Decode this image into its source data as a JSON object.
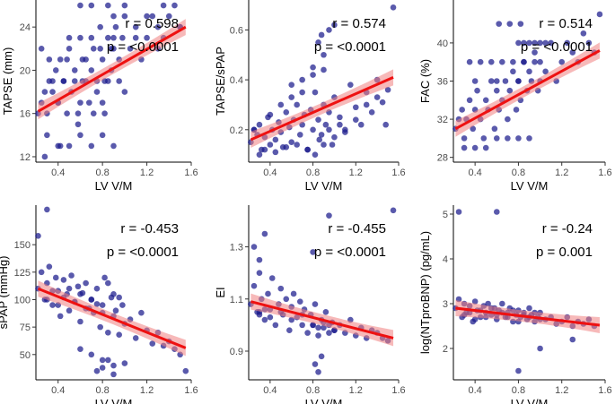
{
  "chart_data": [
    {
      "type": "scatter",
      "title": "",
      "xlabel": "LV V/M",
      "ylabel": "TAPSE (mm)",
      "xlim": [
        0.2,
        1.6
      ],
      "ylim": [
        11.5,
        26.5
      ],
      "xticks": [
        "0.4",
        "0.8",
        "1.2",
        "1.6"
      ],
      "yticks": [
        "12",
        "16",
        "20",
        "24"
      ],
      "fit": {
        "x": [
          0.22,
          1.55
        ],
        "y": [
          16.2,
          24.0
        ]
      },
      "stats": {
        "r": "r = 0.598",
        "p": "p = <0.0001"
      },
      "x": [
        0.22,
        0.25,
        0.28,
        0.3,
        0.32,
        0.35,
        0.38,
        0.4,
        0.42,
        0.45,
        0.48,
        0.5,
        0.52,
        0.55,
        0.58,
        0.6,
        0.62,
        0.65,
        0.68,
        0.7,
        0.72,
        0.75,
        0.78,
        0.8,
        0.82,
        0.85,
        0.88,
        0.9,
        0.92,
        0.95,
        0.98,
        1.0,
        1.05,
        1.1,
        1.15,
        1.2,
        1.25,
        1.3,
        1.35,
        1.4,
        1.45,
        1.5,
        0.3,
        0.4,
        0.5,
        0.6,
        0.7,
        0.8,
        0.9,
        0.35,
        0.45,
        0.55,
        0.65,
        0.75,
        0.85,
        0.95,
        0.4,
        0.6,
        0.8,
        1.0,
        0.25,
        0.5,
        0.7,
        0.9,
        1.1,
        1.3,
        0.32,
        0.48,
        0.62,
        0.78,
        0.88,
        0.6,
        0.7,
        0.85,
        0.9,
        1.0,
        0.28,
        0.42,
        0.58,
        0.72,
        0.82,
        1.2,
        1.35,
        1.5
      ],
      "y": [
        16,
        17,
        18,
        16,
        19,
        18,
        20,
        17,
        21,
        19,
        16,
        22,
        18,
        20,
        15,
        23,
        19,
        21,
        17,
        20,
        22,
        18,
        24,
        21,
        19,
        23,
        20,
        22,
        24,
        21,
        23,
        25,
        22,
        24,
        21,
        23,
        25,
        24,
        23,
        25,
        26,
        24,
        14,
        13,
        13,
        14,
        13,
        14,
        13,
        19,
        19,
        19,
        19,
        19,
        19,
        19,
        17,
        17,
        17,
        18,
        22,
        23,
        23,
        23,
        23,
        22,
        21,
        21,
        21,
        22,
        22,
        26,
        26,
        26,
        25,
        26,
        12,
        13,
        16,
        16,
        16,
        25,
        26,
        24
      ]
    },
    {
      "type": "scatter",
      "title": "",
      "xlabel": "LV V/M",
      "ylabel": "TAPSE/sPAP",
      "xlim": [
        0.2,
        1.6
      ],
      "ylim": [
        0.07,
        0.72
      ],
      "xticks": [
        "0.4",
        "0.8",
        "1.2",
        "1.6"
      ],
      "yticks": [
        "0.2",
        "0.4",
        "0.6"
      ],
      "fit": {
        "x": [
          0.22,
          1.55
        ],
        "y": [
          0.16,
          0.41
        ]
      },
      "stats": {
        "r": "r = 0.574",
        "p": "p = <0.0001"
      },
      "x": [
        0.22,
        0.25,
        0.28,
        0.3,
        0.32,
        0.35,
        0.38,
        0.4,
        0.42,
        0.45,
        0.48,
        0.5,
        0.52,
        0.55,
        0.58,
        0.6,
        0.62,
        0.65,
        0.68,
        0.7,
        0.72,
        0.75,
        0.78,
        0.8,
        0.82,
        0.85,
        0.88,
        0.9,
        0.92,
        0.95,
        0.98,
        1.0,
        1.05,
        1.1,
        1.15,
        1.2,
        1.25,
        1.3,
        1.35,
        1.4,
        1.45,
        1.5,
        0.3,
        0.35,
        0.45,
        0.55,
        0.65,
        0.75,
        0.82,
        0.86,
        0.9,
        0.95,
        1.0,
        1.05,
        1.1,
        1.2,
        1.3,
        1.4,
        0.25,
        0.4,
        0.5,
        0.6,
        0.7,
        0.8,
        0.9,
        0.85,
        0.88,
        0.9,
        0.95,
        1.0,
        0.6,
        0.7,
        0.8,
        1.48,
        1.55
      ],
      "y": [
        0.15,
        0.2,
        0.18,
        0.22,
        0.12,
        0.17,
        0.25,
        0.14,
        0.2,
        0.16,
        0.23,
        0.19,
        0.13,
        0.27,
        0.21,
        0.15,
        0.24,
        0.3,
        0.18,
        0.22,
        0.26,
        0.12,
        0.28,
        0.2,
        0.35,
        0.24,
        0.18,
        0.3,
        0.22,
        0.27,
        0.14,
        0.33,
        0.25,
        0.2,
        0.38,
        0.29,
        0.22,
        0.35,
        0.27,
        0.4,
        0.31,
        0.36,
        0.1,
        0.12,
        0.11,
        0.13,
        0.14,
        0.12,
        0.1,
        0.16,
        0.14,
        0.2,
        0.17,
        0.22,
        0.19,
        0.24,
        0.3,
        0.33,
        0.2,
        0.26,
        0.3,
        0.33,
        0.35,
        0.42,
        0.44,
        0.55,
        0.58,
        0.5,
        0.6,
        0.62,
        0.38,
        0.4,
        0.45,
        0.22,
        0.69
      ]
    },
    {
      "type": "scatter",
      "title": "",
      "xlabel": "LV V/M",
      "ylabel": "FAC (%)",
      "xlim": [
        0.2,
        1.6
      ],
      "ylim": [
        27.5,
        44.5
      ],
      "xticks": [
        "0.4",
        "0.8",
        "1.2",
        "1.6"
      ],
      "yticks": [
        "28",
        "32",
        "36",
        "40"
      ],
      "fit": {
        "x": [
          0.22,
          1.55
        ],
        "y": [
          31.0,
          39.2
        ]
      },
      "stats": {
        "r": "r = 0.514",
        "p": "p = <0.0001"
      },
      "x": [
        0.22,
        0.25,
        0.28,
        0.3,
        0.32,
        0.35,
        0.38,
        0.4,
        0.42,
        0.45,
        0.48,
        0.5,
        0.52,
        0.55,
        0.58,
        0.6,
        0.62,
        0.65,
        0.68,
        0.7,
        0.72,
        0.75,
        0.78,
        0.8,
        0.82,
        0.85,
        0.88,
        0.9,
        0.92,
        0.95,
        0.98,
        1.0,
        1.05,
        1.1,
        1.15,
        1.2,
        1.25,
        1.3,
        1.35,
        1.4,
        1.45,
        1.5,
        0.3,
        0.4,
        0.5,
        0.6,
        0.7,
        0.8,
        0.9,
        0.35,
        0.45,
        0.55,
        0.65,
        0.75,
        0.85,
        0.95,
        0.4,
        0.6,
        0.8,
        1.0,
        0.8,
        0.85,
        0.9,
        0.95,
        1.0,
        1.05,
        0.62,
        0.72,
        0.82,
        1.55
      ],
      "y": [
        31,
        32,
        33,
        30,
        32,
        34,
        31,
        33,
        35,
        32,
        30,
        34,
        33,
        36,
        31,
        35,
        33,
        34,
        36,
        32,
        35,
        37,
        33,
        36,
        34,
        38,
        35,
        37,
        36,
        39,
        35,
        38,
        37,
        40,
        36,
        38,
        40,
        39,
        38,
        41,
        40,
        39,
        29,
        29,
        29,
        30,
        30,
        30,
        30,
        38,
        38,
        38,
        38,
        38,
        38,
        38,
        36,
        36,
        36,
        36,
        40,
        40,
        40,
        40,
        40,
        40,
        42,
        42,
        42,
        43
      ]
    },
    {
      "type": "scatter",
      "title": "",
      "xlabel": "LV V/M",
      "ylabel": "sPAP (mmHg)",
      "xlim": [
        0.2,
        1.6
      ],
      "ylim": [
        27,
        186
      ],
      "xticks": [
        "0.4",
        "0.8",
        "1.2",
        "1.6"
      ],
      "yticks": [
        "50",
        "75",
        "100",
        "125",
        "150"
      ],
      "fit": {
        "x": [
          0.22,
          1.55
        ],
        "y": [
          110,
          56
        ]
      },
      "stats": {
        "r": "r = -0.453",
        "p": "p = <0.0001"
      },
      "x": [
        0.22,
        0.25,
        0.28,
        0.3,
        0.32,
        0.35,
        0.38,
        0.4,
        0.42,
        0.45,
        0.48,
        0.5,
        0.52,
        0.55,
        0.58,
        0.6,
        0.62,
        0.65,
        0.68,
        0.7,
        0.72,
        0.75,
        0.78,
        0.8,
        0.82,
        0.85,
        0.88,
        0.9,
        0.92,
        0.95,
        0.98,
        1.0,
        1.05,
        1.1,
        1.15,
        1.2,
        1.25,
        1.3,
        1.35,
        1.4,
        1.45,
        1.5,
        0.3,
        0.35,
        0.4,
        0.45,
        0.5,
        0.55,
        0.6,
        0.65,
        0.7,
        0.75,
        0.8,
        0.85,
        0.9,
        0.95,
        0.6,
        0.7,
        0.8,
        0.9,
        1.0,
        0.75,
        0.8,
        0.85,
        0.9,
        0.3,
        0.22,
        1.55
      ],
      "y": [
        110,
        125,
        100,
        115,
        130,
        95,
        120,
        108,
        85,
        118,
        105,
        90,
        122,
        98,
        112,
        80,
        106,
        115,
        92,
        100,
        88,
        110,
        75,
        95,
        120,
        70,
        102,
        85,
        90,
        68,
        95,
        78,
        82,
        65,
        88,
        72,
        60,
        70,
        58,
        62,
        55,
        50,
        100,
        108,
        95,
        102,
        110,
        98,
        105,
        92,
        100,
        96,
        88,
        115,
        105,
        102,
        55,
        50,
        45,
        40,
        42,
        35,
        38,
        45,
        32,
        182,
        158,
        35
      ]
    },
    {
      "type": "scatter",
      "title": "",
      "xlabel": "LV V/M",
      "ylabel": "EI",
      "xlim": [
        0.2,
        1.6
      ],
      "ylim": [
        0.79,
        1.46
      ],
      "xticks": [
        "0.4",
        "0.8",
        "1.2",
        "1.6"
      ],
      "yticks": [
        "0.9",
        "1.1",
        "1.3"
      ],
      "fit": {
        "x": [
          0.22,
          1.55
        ],
        "y": [
          1.09,
          0.95
        ]
      },
      "stats": {
        "r": "r = -0.455",
        "p": "p = <0.0001"
      },
      "x": [
        0.22,
        0.25,
        0.28,
        0.3,
        0.32,
        0.35,
        0.38,
        0.4,
        0.42,
        0.45,
        0.48,
        0.5,
        0.52,
        0.55,
        0.58,
        0.6,
        0.62,
        0.65,
        0.68,
        0.7,
        0.72,
        0.75,
        0.78,
        0.8,
        0.82,
        0.85,
        0.88,
        0.9,
        0.92,
        0.95,
        0.98,
        1.0,
        1.05,
        1.1,
        1.15,
        1.2,
        1.25,
        1.3,
        1.35,
        1.4,
        1.45,
        1.5,
        0.3,
        0.35,
        0.4,
        0.5,
        0.6,
        0.7,
        0.8,
        0.85,
        0.9,
        0.95,
        1.0,
        0.25,
        0.3,
        0.35,
        0.82,
        0.88,
        0.8,
        0.95,
        0.3,
        0.85,
        1.55
      ],
      "y": [
        1.08,
        1.15,
        1.05,
        1.2,
        1.1,
        1.02,
        1.12,
        1.06,
        1.18,
        1.0,
        1.08,
        1.14,
        1.04,
        1.1,
        0.98,
        1.07,
        1.12,
        1.03,
        1.09,
        1.0,
        1.06,
        0.97,
        1.04,
        1.0,
        1.08,
        0.96,
        1.02,
        0.99,
        1.05,
        0.97,
        1.01,
        0.98,
        1.0,
        0.97,
        1.02,
        0.96,
        0.99,
        0.95,
        0.98,
        0.97,
        0.95,
        0.94,
        1.04,
        1.06,
        1.03,
        1.05,
        1.02,
        1.04,
        1.0,
        0.99,
        1.01,
        1.0,
        0.98,
        1.3,
        1.25,
        1.35,
        0.85,
        0.88,
        1.28,
        1.42,
        1.05,
        0.82,
        1.44
      ]
    },
    {
      "type": "scatter",
      "title": "",
      "xlabel": "LV V/M",
      "ylabel": "log(NTproBNP) (pg/mL)",
      "xlim": [
        0.2,
        1.6
      ],
      "ylim": [
        1.3,
        5.2
      ],
      "xticks": [
        "0.4",
        "0.8",
        "1.2",
        "1.6"
      ],
      "yticks": [
        "2",
        "3",
        "4",
        "5"
      ],
      "fit": {
        "x": [
          0.22,
          1.55
        ],
        "y": [
          2.9,
          2.52
        ]
      },
      "stats": {
        "r": "r = -0.24",
        "p": "p = 0.001"
      },
      "x": [
        0.22,
        0.25,
        0.28,
        0.3,
        0.32,
        0.35,
        0.38,
        0.4,
        0.42,
        0.45,
        0.48,
        0.5,
        0.52,
        0.55,
        0.58,
        0.6,
        0.62,
        0.65,
        0.68,
        0.7,
        0.72,
        0.75,
        0.78,
        0.8,
        0.82,
        0.85,
        0.88,
        0.9,
        0.92,
        0.95,
        0.98,
        1.0,
        1.05,
        1.1,
        1.15,
        1.2,
        1.25,
        1.3,
        1.35,
        1.4,
        1.45,
        1.5,
        0.3,
        0.35,
        0.4,
        0.45,
        0.5,
        0.55,
        0.6,
        0.65,
        0.7,
        0.75,
        0.8,
        0.85,
        0.9,
        0.95,
        1.0,
        0.25,
        0.6,
        0.8,
        1.0,
        1.3
      ],
      "y": [
        2.9,
        3.1,
        2.7,
        3.0,
        2.8,
        2.95,
        2.6,
        3.05,
        2.85,
        2.7,
        2.95,
        2.8,
        3.0,
        2.75,
        2.9,
        2.65,
        2.85,
        3.0,
        2.7,
        2.8,
        2.9,
        2.6,
        2.75,
        2.85,
        2.7,
        2.8,
        2.65,
        2.9,
        2.75,
        2.6,
        2.7,
        2.8,
        2.65,
        2.7,
        2.55,
        2.6,
        2.7,
        2.5,
        2.6,
        2.55,
        2.65,
        2.5,
        2.75,
        2.8,
        2.65,
        2.85,
        2.7,
        2.9,
        2.75,
        2.8,
        2.7,
        2.85,
        2.6,
        2.75,
        2.7,
        2.8,
        2.65,
        5.05,
        5.05,
        1.5,
        2.0,
        2.2
      ]
    }
  ]
}
